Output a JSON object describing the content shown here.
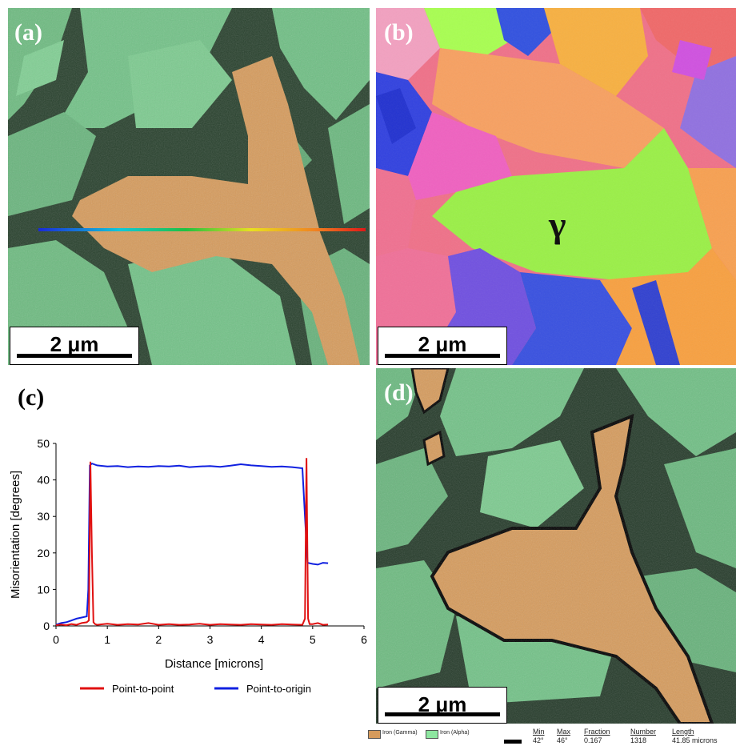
{
  "panel_a": {
    "label": "(a)",
    "scale_bar": "2 μm"
  },
  "panel_b": {
    "label": "(b)",
    "scale_bar": "2 μm",
    "phase_label": "γ"
  },
  "panel_c": {
    "label": "(c)"
  },
  "panel_d": {
    "label": "(d)",
    "scale_bar": "2 μm"
  },
  "legend": {
    "phase_1": "Iron (Gamma)",
    "phase_2": "Iron (Alpha)",
    "headers": {
      "min": "Min",
      "max": "Max",
      "fraction": "Fraction",
      "number": "Number",
      "length": "Length"
    },
    "values": {
      "min": "42°",
      "max": "46°",
      "fraction": "0.167",
      "number": "1318",
      "length": "41.85 microns"
    }
  },
  "colors": {
    "gamma": "#d79a58",
    "alpha": "#73c98a",
    "boundary": "#000000"
  },
  "chart_data": {
    "type": "line",
    "xlabel": "Distance [microns]",
    "ylabel": "Misorientation [degrees]",
    "xlim": [
      0,
      6
    ],
    "ylim": [
      0,
      50
    ],
    "xticks": [
      "0",
      "1",
      "2",
      "3",
      "4",
      "5",
      "6"
    ],
    "yticks": [
      "0",
      "10",
      "20",
      "30",
      "40",
      "50"
    ],
    "grid": false,
    "legend_position": "bottom",
    "series": [
      {
        "name": "Point-to-point",
        "color": "#e01010",
        "x": [
          0,
          0.1,
          0.2,
          0.3,
          0.4,
          0.5,
          0.6,
          0.64,
          0.67,
          0.7,
          0.73,
          0.76,
          0.8,
          1.0,
          1.2,
          1.4,
          1.6,
          1.8,
          2.0,
          2.2,
          2.4,
          2.6,
          2.8,
          3.0,
          3.2,
          3.4,
          3.6,
          3.8,
          4.0,
          4.2,
          4.4,
          4.6,
          4.8,
          4.85,
          4.88,
          4.91,
          4.94,
          5.0,
          5.1,
          5.2,
          5.3
        ],
        "y": [
          0.2,
          0.4,
          0.2,
          0.5,
          0.3,
          0.8,
          1.0,
          1.5,
          45,
          20,
          1.0,
          0.5,
          0.3,
          0.6,
          0.3,
          0.5,
          0.4,
          0.8,
          0.3,
          0.5,
          0.3,
          0.4,
          0.6,
          0.3,
          0.5,
          0.4,
          0.3,
          0.5,
          0.4,
          0.3,
          0.5,
          0.4,
          0.3,
          2.0,
          46,
          2.0,
          0.5,
          0.5,
          0.8,
          0.3,
          0.4
        ]
      },
      {
        "name": "Point-to-origin",
        "color": "#1020e0",
        "x": [
          0,
          0.1,
          0.2,
          0.3,
          0.4,
          0.5,
          0.6,
          0.63,
          0.66,
          0.7,
          0.8,
          1.0,
          1.2,
          1.4,
          1.6,
          1.8,
          2.0,
          2.2,
          2.4,
          2.6,
          2.8,
          3.0,
          3.2,
          3.4,
          3.6,
          3.8,
          4.0,
          4.2,
          4.4,
          4.6,
          4.8,
          4.85,
          4.9,
          5.0,
          5.1,
          5.2,
          5.3
        ],
        "y": [
          0.3,
          0.8,
          1.0,
          1.5,
          2.0,
          2.3,
          2.6,
          10,
          44,
          44.5,
          44,
          43.7,
          43.8,
          43.5,
          43.7,
          43.6,
          43.8,
          43.7,
          43.9,
          43.5,
          43.7,
          43.8,
          43.6,
          43.9,
          44.3,
          44,
          43.8,
          43.6,
          43.7,
          43.5,
          43.2,
          30,
          17.3,
          17.0,
          16.8,
          17.3,
          17.2
        ]
      }
    ]
  }
}
